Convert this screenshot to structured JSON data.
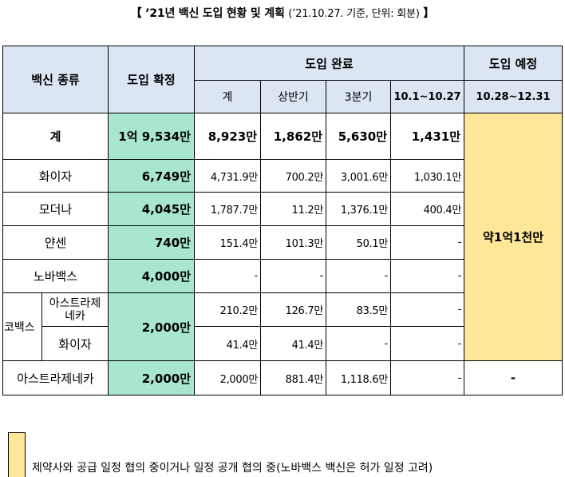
{
  "title": {
    "main": "【 ’21년 백신 도입 현황 및 계획",
    "sub": "(’21.10.27. 기준, 단위: 회분)",
    "close": "】"
  },
  "table": {
    "headers": {
      "vaccine_type": "백신 종류",
      "confirmed": "도입 확정",
      "completed": "도입 완료",
      "planned": "도입 예정",
      "total": "계",
      "first_half": "상반기",
      "q3": "3분기",
      "oct": "10.1~10.27",
      "planned_period": "10.28~12.31"
    },
    "total_row": {
      "label": "계",
      "confirmed": "1억 9,534만",
      "total": "8,923만",
      "first_half": "1,862만",
      "q3": "5,630만",
      "oct": "1,431만"
    },
    "planned_value": "약1억1천만",
    "rows": [
      {
        "name": "화이자",
        "confirmed": "6,749만",
        "total": "4,731.9만",
        "first_half": "700.2만",
        "q3": "3,001.6만",
        "oct": "1,030.1만"
      },
      {
        "name": "모더나",
        "confirmed": "4,045만",
        "total": "1,787.7만",
        "first_half": "11.2만",
        "q3": "1,376.1만",
        "oct": "400.4만"
      },
      {
        "name": "얀센",
        "confirmed": "740만",
        "total": "151.4만",
        "first_half": "101.3만",
        "q3": "50.1만",
        "oct": "-"
      },
      {
        "name": "노바백스",
        "confirmed": "4,000만",
        "total": "-",
        "first_half": "-",
        "q3": "-",
        "oct": "-"
      }
    ],
    "covax": {
      "group": "코백스",
      "confirmed": "2,000만",
      "az_line1": "아스트라제",
      "az_line2": "네카",
      "az": {
        "total": "210.2만",
        "first_half": "126.7만",
        "q3": "83.5만",
        "oct": "-"
      },
      "pfizer_name": "화이자",
      "pfizer": {
        "total": "41.4만",
        "first_half": "41.4만",
        "q3": "-",
        "oct": "-"
      }
    },
    "last_row": {
      "name": "아스트라제네카",
      "confirmed": "2,000만",
      "total": "2,000만",
      "first_half": "881.4만",
      "q3": "1,118.6만",
      "oct": "-",
      "planned": "-"
    }
  },
  "legend": {
    "text": "제약사와 공급 일정 협의 중이거나 일정 공개 협의 중(노바백스 백신은 허가 일정 고려)",
    "color": "#ffe699"
  },
  "colors": {
    "header": "#dce6f2",
    "confirmed": "#a8e6cd",
    "planned": "#ffe699"
  }
}
